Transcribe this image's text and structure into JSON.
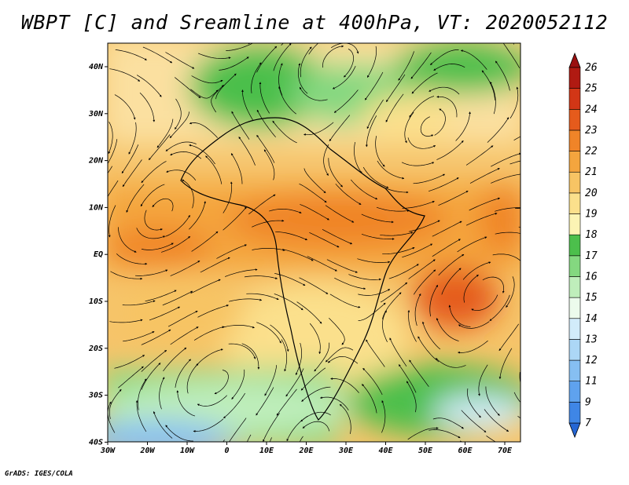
{
  "title": "WBPT [C] and Sreamline at 400hPa, VT: 2020052112",
  "credit": "GrADS: IGES/COLA",
  "map": {
    "lon_labels": [
      "30W",
      "20W",
      "10W",
      "0",
      "10E",
      "20E",
      "30E",
      "40E",
      "50E",
      "60E",
      "70E"
    ],
    "lat_labels": [
      "40N",
      "30N",
      "20N",
      "10N",
      "EQ",
      "10S",
      "20S",
      "30S",
      "40S"
    ]
  },
  "colorbar": {
    "labels": [
      "7",
      "9",
      "11",
      "12",
      "13",
      "14",
      "15",
      "16",
      "17",
      "18",
      "19",
      "20",
      "21",
      "22",
      "23",
      "24",
      "25",
      "26"
    ],
    "colors": [
      "#2566d4",
      "#3f86e6",
      "#5fa2ee",
      "#86bff2",
      "#acd7f6",
      "#d2ecfa",
      "#ecfbec",
      "#bfeebb",
      "#84d880",
      "#4cbf4c",
      "#fcf4b4",
      "#fbe08c",
      "#f7c464",
      "#f4a53e",
      "#f08428",
      "#e55b1c",
      "#d23616",
      "#b01a12",
      "#9a1010"
    ]
  }
}
